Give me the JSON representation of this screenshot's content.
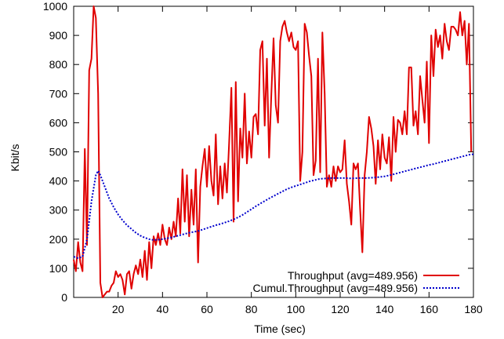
{
  "chart_data": {
    "type": "line",
    "title": "",
    "xlabel": "Time (sec)",
    "ylabel": "Kbit/s",
    "xlim": [
      0,
      180
    ],
    "ylim": [
      0,
      1000
    ],
    "xticks": [
      20,
      40,
      60,
      80,
      100,
      120,
      140,
      160,
      180
    ],
    "yticks": [
      0,
      100,
      200,
      300,
      400,
      500,
      600,
      700,
      800,
      900,
      1000
    ],
    "grid": false,
    "legend_position": "bottom-right",
    "series": [
      {
        "name": "Throughput (avg=489.956)",
        "color": "#e00000",
        "style": "solid",
        "points": [
          [
            0,
            130
          ],
          [
            1,
            90
          ],
          [
            2,
            190
          ],
          [
            3,
            120
          ],
          [
            4,
            90
          ],
          [
            5,
            510
          ],
          [
            6,
            180
          ],
          [
            7,
            780
          ],
          [
            8,
            820
          ],
          [
            9,
            1000
          ],
          [
            10,
            960
          ],
          [
            11,
            700
          ],
          [
            12,
            50
          ],
          [
            13,
            0
          ],
          [
            14,
            10
          ],
          [
            15,
            20
          ],
          [
            16,
            20
          ],
          [
            17,
            40
          ],
          [
            18,
            50
          ],
          [
            19,
            90
          ],
          [
            20,
            70
          ],
          [
            21,
            80
          ],
          [
            22,
            60
          ],
          [
            23,
            10
          ],
          [
            24,
            80
          ],
          [
            25,
            90
          ],
          [
            26,
            30
          ],
          [
            27,
            80
          ],
          [
            28,
            110
          ],
          [
            29,
            80
          ],
          [
            30,
            130
          ],
          [
            31,
            70
          ],
          [
            32,
            160
          ],
          [
            33,
            60
          ],
          [
            34,
            190
          ],
          [
            35,
            100
          ],
          [
            36,
            210
          ],
          [
            37,
            180
          ],
          [
            38,
            220
          ],
          [
            39,
            180
          ],
          [
            40,
            250
          ],
          [
            41,
            200
          ],
          [
            42,
            180
          ],
          [
            43,
            240
          ],
          [
            44,
            200
          ],
          [
            45,
            260
          ],
          [
            46,
            210
          ],
          [
            47,
            340
          ],
          [
            48,
            220
          ],
          [
            49,
            440
          ],
          [
            50,
            260
          ],
          [
            51,
            420
          ],
          [
            52,
            210
          ],
          [
            53,
            370
          ],
          [
            54,
            250
          ],
          [
            55,
            440
          ],
          [
            56,
            120
          ],
          [
            57,
            380
          ],
          [
            58,
            450
          ],
          [
            59,
            510
          ],
          [
            60,
            380
          ],
          [
            61,
            520
          ],
          [
            62,
            400
          ],
          [
            63,
            350
          ],
          [
            64,
            560
          ],
          [
            65,
            320
          ],
          [
            66,
            450
          ],
          [
            67,
            340
          ],
          [
            68,
            460
          ],
          [
            69,
            360
          ],
          [
            70,
            530
          ],
          [
            71,
            720
          ],
          [
            72,
            260
          ],
          [
            73,
            740
          ],
          [
            74,
            330
          ],
          [
            75,
            580
          ],
          [
            76,
            480
          ],
          [
            77,
            700
          ],
          [
            78,
            460
          ],
          [
            79,
            570
          ],
          [
            80,
            480
          ],
          [
            81,
            620
          ],
          [
            82,
            630
          ],
          [
            83,
            560
          ],
          [
            84,
            850
          ],
          [
            85,
            880
          ],
          [
            86,
            590
          ],
          [
            87,
            820
          ],
          [
            88,
            480
          ],
          [
            89,
            700
          ],
          [
            90,
            890
          ],
          [
            91,
            660
          ],
          [
            92,
            600
          ],
          [
            93,
            880
          ],
          [
            94,
            930
          ],
          [
            95,
            950
          ],
          [
            96,
            910
          ],
          [
            97,
            880
          ],
          [
            98,
            910
          ],
          [
            99,
            860
          ],
          [
            100,
            850
          ],
          [
            101,
            880
          ],
          [
            102,
            400
          ],
          [
            103,
            500
          ],
          [
            104,
            940
          ],
          [
            105,
            910
          ],
          [
            106,
            830
          ],
          [
            107,
            760
          ],
          [
            108,
            420
          ],
          [
            109,
            470
          ],
          [
            110,
            820
          ],
          [
            111,
            430
          ],
          [
            112,
            910
          ],
          [
            113,
            700
          ],
          [
            114,
            380
          ],
          [
            115,
            420
          ],
          [
            116,
            380
          ],
          [
            117,
            450
          ],
          [
            118,
            400
          ],
          [
            119,
            450
          ],
          [
            120,
            430
          ],
          [
            121,
            440
          ],
          [
            122,
            540
          ],
          [
            123,
            390
          ],
          [
            124,
            330
          ],
          [
            125,
            250
          ],
          [
            126,
            460
          ],
          [
            127,
            440
          ],
          [
            128,
            460
          ],
          [
            129,
            300
          ],
          [
            130,
            155
          ],
          [
            131,
            420
          ],
          [
            132,
            500
          ],
          [
            133,
            620
          ],
          [
            134,
            580
          ],
          [
            135,
            520
          ],
          [
            136,
            390
          ],
          [
            137,
            540
          ],
          [
            138,
            440
          ],
          [
            139,
            560
          ],
          [
            140,
            480
          ],
          [
            141,
            460
          ],
          [
            142,
            550
          ],
          [
            143,
            400
          ],
          [
            144,
            620
          ],
          [
            145,
            500
          ],
          [
            146,
            610
          ],
          [
            147,
            600
          ],
          [
            148,
            560
          ],
          [
            149,
            640
          ],
          [
            150,
            560
          ],
          [
            151,
            790
          ],
          [
            152,
            790
          ],
          [
            153,
            590
          ],
          [
            154,
            640
          ],
          [
            155,
            560
          ],
          [
            156,
            760
          ],
          [
            157,
            680
          ],
          [
            158,
            600
          ],
          [
            159,
            810
          ],
          [
            160,
            530
          ],
          [
            161,
            900
          ],
          [
            162,
            760
          ],
          [
            163,
            920
          ],
          [
            164,
            860
          ],
          [
            165,
            900
          ],
          [
            166,
            820
          ],
          [
            167,
            940
          ],
          [
            168,
            880
          ],
          [
            169,
            850
          ],
          [
            170,
            930
          ],
          [
            171,
            930
          ],
          [
            172,
            920
          ],
          [
            173,
            900
          ],
          [
            174,
            980
          ],
          [
            175,
            900
          ],
          [
            176,
            950
          ],
          [
            177,
            800
          ],
          [
            178,
            940
          ],
          [
            179,
            500
          ]
        ]
      },
      {
        "name": "Cumul.Throughput (avg=489.956)",
        "color": "#0000cc",
        "style": "dotted",
        "points": [
          [
            0,
            140
          ],
          [
            2,
            135
          ],
          [
            4,
            140
          ],
          [
            6,
            200
          ],
          [
            8,
            330
          ],
          [
            10,
            420
          ],
          [
            11,
            435
          ],
          [
            12,
            420
          ],
          [
            14,
            380
          ],
          [
            16,
            340
          ],
          [
            18,
            310
          ],
          [
            20,
            285
          ],
          [
            22,
            265
          ],
          [
            24,
            248
          ],
          [
            26,
            235
          ],
          [
            28,
            222
          ],
          [
            30,
            212
          ],
          [
            32,
            205
          ],
          [
            34,
            200
          ],
          [
            36,
            197
          ],
          [
            38,
            198
          ],
          [
            40,
            200
          ],
          [
            42,
            203
          ],
          [
            44,
            206
          ],
          [
            46,
            210
          ],
          [
            48,
            214
          ],
          [
            50,
            218
          ],
          [
            52,
            222
          ],
          [
            54,
            225
          ],
          [
            56,
            228
          ],
          [
            58,
            233
          ],
          [
            60,
            238
          ],
          [
            62,
            243
          ],
          [
            64,
            248
          ],
          [
            66,
            252
          ],
          [
            68,
            257
          ],
          [
            70,
            262
          ],
          [
            72,
            268
          ],
          [
            74,
            275
          ],
          [
            76,
            283
          ],
          [
            78,
            293
          ],
          [
            80,
            303
          ],
          [
            82,
            313
          ],
          [
            84,
            322
          ],
          [
            86,
            331
          ],
          [
            88,
            340
          ],
          [
            90,
            348
          ],
          [
            92,
            356
          ],
          [
            94,
            364
          ],
          [
            96,
            372
          ],
          [
            98,
            378
          ],
          [
            100,
            383
          ],
          [
            102,
            388
          ],
          [
            104,
            393
          ],
          [
            106,
            398
          ],
          [
            108,
            402
          ],
          [
            110,
            406
          ],
          [
            112,
            408
          ],
          [
            114,
            409
          ],
          [
            116,
            410
          ],
          [
            118,
            410
          ],
          [
            120,
            410
          ],
          [
            122,
            410
          ],
          [
            124,
            409
          ],
          [
            126,
            409
          ],
          [
            128,
            410
          ],
          [
            130,
            410
          ],
          [
            132,
            410
          ],
          [
            134,
            411
          ],
          [
            136,
            412
          ],
          [
            138,
            414
          ],
          [
            140,
            416
          ],
          [
            142,
            419
          ],
          [
            144,
            423
          ],
          [
            146,
            427
          ],
          [
            148,
            431
          ],
          [
            150,
            435
          ],
          [
            152,
            439
          ],
          [
            154,
            443
          ],
          [
            156,
            447
          ],
          [
            158,
            451
          ],
          [
            160,
            455
          ],
          [
            162,
            458
          ],
          [
            164,
            462
          ],
          [
            166,
            466
          ],
          [
            168,
            470
          ],
          [
            170,
            474
          ],
          [
            172,
            478
          ],
          [
            174,
            482
          ],
          [
            176,
            486
          ],
          [
            178,
            490
          ],
          [
            180,
            492
          ]
        ]
      }
    ]
  }
}
